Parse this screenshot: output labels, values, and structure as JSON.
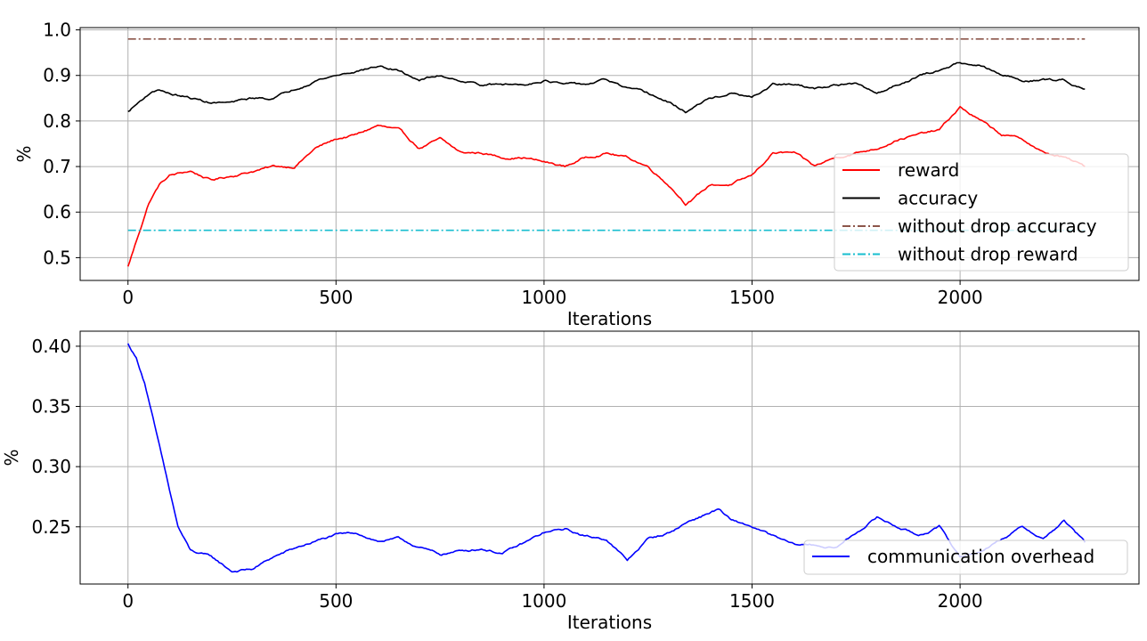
{
  "chart_data": [
    {
      "type": "line",
      "xlabel": "Iterations",
      "ylabel": "%",
      "xlim": [
        -115,
        2430
      ],
      "ylim": [
        0.45,
        1.005
      ],
      "xticks": [
        0,
        500,
        1000,
        1500,
        2000
      ],
      "yticks": [
        0.5,
        0.6,
        0.7,
        0.8,
        0.9,
        1.0
      ],
      "ytick_labels": [
        "0.5",
        "0.6",
        "0.7",
        "0.8",
        "0.9",
        "1.0"
      ],
      "grid": true,
      "legend_position": "lower-right",
      "series": [
        {
          "name": "reward",
          "color": "#ff0000",
          "style": "solid",
          "x": [
            0,
            25,
            50,
            75,
            100,
            150,
            200,
            250,
            300,
            350,
            400,
            450,
            500,
            550,
            600,
            650,
            700,
            750,
            800,
            850,
            900,
            950,
            1000,
            1050,
            1100,
            1150,
            1200,
            1250,
            1300,
            1340,
            1360,
            1400,
            1450,
            1500,
            1550,
            1600,
            1650,
            1700,
            1750,
            1800,
            1850,
            1900,
            1950,
            2000,
            2050,
            2100,
            2150,
            2200,
            2250,
            2300
          ],
          "y": [
            0.48,
            0.55,
            0.62,
            0.66,
            0.68,
            0.69,
            0.67,
            0.68,
            0.69,
            0.7,
            0.7,
            0.74,
            0.76,
            0.77,
            0.79,
            0.78,
            0.74,
            0.76,
            0.73,
            0.73,
            0.72,
            0.72,
            0.71,
            0.7,
            0.72,
            0.73,
            0.72,
            0.7,
            0.66,
            0.62,
            0.63,
            0.66,
            0.66,
            0.68,
            0.73,
            0.73,
            0.7,
            0.72,
            0.73,
            0.74,
            0.76,
            0.77,
            0.78,
            0.83,
            0.8,
            0.77,
            0.76,
            0.73,
            0.72,
            0.7
          ]
        },
        {
          "name": "accuracy",
          "color": "#000000",
          "style": "solid",
          "x": [
            0,
            25,
            50,
            75,
            100,
            150,
            200,
            250,
            300,
            350,
            400,
            450,
            500,
            550,
            600,
            650,
            700,
            750,
            800,
            850,
            900,
            950,
            1000,
            1050,
            1100,
            1150,
            1200,
            1250,
            1300,
            1340,
            1360,
            1400,
            1450,
            1500,
            1550,
            1600,
            1650,
            1700,
            1750,
            1800,
            1850,
            1900,
            1950,
            2000,
            2050,
            2100,
            2150,
            2200,
            2250,
            2300
          ],
          "y": [
            0.82,
            0.84,
            0.86,
            0.87,
            0.86,
            0.85,
            0.84,
            0.84,
            0.85,
            0.85,
            0.87,
            0.89,
            0.9,
            0.91,
            0.92,
            0.91,
            0.89,
            0.9,
            0.89,
            0.88,
            0.88,
            0.88,
            0.89,
            0.88,
            0.88,
            0.89,
            0.87,
            0.86,
            0.84,
            0.82,
            0.83,
            0.85,
            0.86,
            0.85,
            0.88,
            0.88,
            0.87,
            0.88,
            0.88,
            0.86,
            0.88,
            0.9,
            0.91,
            0.93,
            0.92,
            0.9,
            0.89,
            0.89,
            0.89,
            0.87
          ]
        },
        {
          "name": "without drop accuracy",
          "color": "#8c564b",
          "style": "dashdot",
          "x": [
            0,
            2300
          ],
          "y": [
            0.98,
            0.98
          ]
        },
        {
          "name": "without drop reward",
          "color": "#17becf",
          "style": "dashdot",
          "x": [
            0,
            2300
          ],
          "y": [
            0.56,
            0.56
          ]
        }
      ]
    },
    {
      "type": "line",
      "xlabel": "Iterations",
      "ylabel": "%",
      "xlim": [
        -115,
        2430
      ],
      "ylim": [
        0.2025,
        0.4125
      ],
      "xticks": [
        0,
        500,
        1000,
        1500,
        2000
      ],
      "yticks": [
        0.25,
        0.3,
        0.35,
        0.4
      ],
      "ytick_labels": [
        "0.25",
        "0.30",
        "0.35",
        "0.40"
      ],
      "grid": true,
      "legend_position": "lower-right",
      "series": [
        {
          "name": "communication overhead",
          "color": "#0000ff",
          "style": "solid",
          "x": [
            0,
            20,
            40,
            60,
            80,
            100,
            120,
            150,
            200,
            250,
            300,
            350,
            400,
            450,
            500,
            550,
            600,
            650,
            700,
            750,
            800,
            850,
            900,
            950,
            1000,
            1050,
            1100,
            1150,
            1200,
            1250,
            1300,
            1350,
            1400,
            1420,
            1450,
            1500,
            1550,
            1600,
            1650,
            1700,
            1750,
            1800,
            1850,
            1900,
            1950,
            2000,
            2050,
            2100,
            2150,
            2200,
            2250,
            2300
          ],
          "y": [
            0.402,
            0.39,
            0.37,
            0.34,
            0.31,
            0.28,
            0.25,
            0.23,
            0.225,
            0.213,
            0.215,
            0.225,
            0.232,
            0.238,
            0.243,
            0.245,
            0.238,
            0.24,
            0.233,
            0.227,
            0.23,
            0.232,
            0.228,
            0.236,
            0.245,
            0.248,
            0.242,
            0.24,
            0.222,
            0.24,
            0.245,
            0.255,
            0.262,
            0.265,
            0.255,
            0.25,
            0.242,
            0.235,
            0.235,
            0.232,
            0.245,
            0.258,
            0.25,
            0.243,
            0.25,
            0.225,
            0.23,
            0.24,
            0.25,
            0.24,
            0.255,
            0.237
          ]
        }
      ]
    }
  ]
}
